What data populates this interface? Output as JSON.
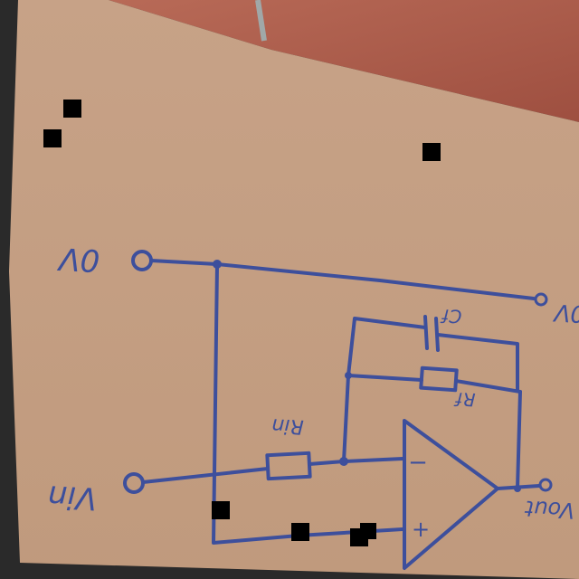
{
  "diagram": {
    "labels": {
      "gnd_left": "0V",
      "gnd_right": "0V",
      "vin": "Vin",
      "vout": "Vout",
      "rin": "Rin",
      "rf": "Rf",
      "cf": "Cf",
      "opamp_minus": "−",
      "opamp_plus": "+"
    }
  },
  "colors": {
    "background": "#2a2a2a",
    "cardboard": "#c79f84",
    "brick": "#b86a57",
    "ink": "#3d4f9c"
  }
}
